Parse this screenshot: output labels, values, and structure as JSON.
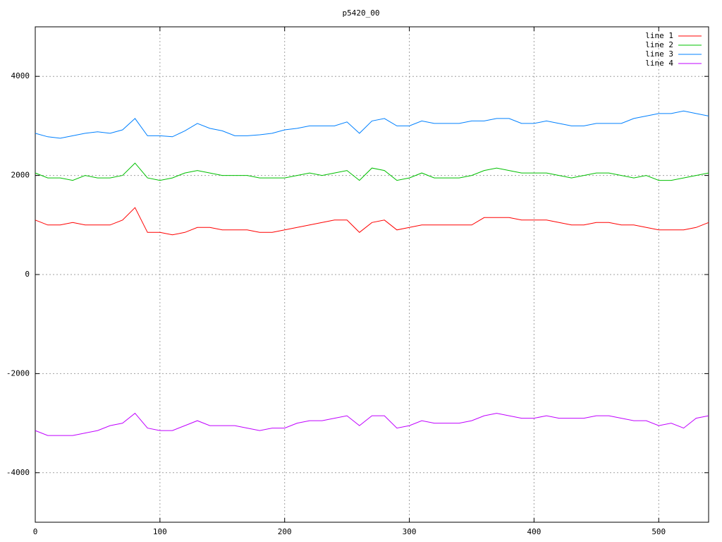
{
  "chart_data": {
    "type": "line",
    "title": "p5420_00",
    "x": [
      0,
      10,
      20,
      30,
      40,
      50,
      60,
      70,
      80,
      90,
      100,
      110,
      120,
      130,
      140,
      150,
      160,
      170,
      180,
      190,
      200,
      210,
      220,
      230,
      240,
      250,
      260,
      270,
      280,
      290,
      300,
      310,
      320,
      330,
      340,
      350,
      360,
      370,
      380,
      390,
      400,
      410,
      420,
      430,
      440,
      450,
      460,
      470,
      480,
      490,
      500,
      510,
      520,
      530,
      540
    ],
    "series": [
      {
        "name": "line 1",
        "color": "#ff0000",
        "values": [
          1100,
          1000,
          1000,
          1050,
          1000,
          1000,
          1000,
          1100,
          1350,
          850,
          850,
          800,
          850,
          950,
          950,
          900,
          900,
          900,
          850,
          850,
          900,
          950,
          1000,
          1050,
          1100,
          1100,
          850,
          1050,
          1100,
          900,
          950,
          1000,
          1000,
          1000,
          1000,
          1000,
          1150,
          1150,
          1150,
          1100,
          1100,
          1100,
          1050,
          1000,
          1000,
          1050,
          1050,
          1000,
          1000,
          950,
          900,
          900,
          900,
          950,
          1050
        ]
      },
      {
        "name": "line 2",
        "color": "#00c000",
        "values": [
          2050,
          1950,
          1950,
          1900,
          2000,
          1950,
          1950,
          2000,
          2250,
          1950,
          1900,
          1950,
          2050,
          2100,
          2050,
          2000,
          2000,
          2000,
          1950,
          1950,
          1950,
          2000,
          2050,
          2000,
          2050,
          2100,
          1900,
          2150,
          2100,
          1900,
          1950,
          2050,
          1950,
          1950,
          1950,
          2000,
          2100,
          2150,
          2100,
          2050,
          2050,
          2050,
          2000,
          1950,
          2000,
          2050,
          2050,
          2000,
          1950,
          2000,
          1900,
          1900,
          1950,
          2000,
          2050
        ]
      },
      {
        "name": "line 3",
        "color": "#0080ff",
        "values": [
          2850,
          2780,
          2750,
          2800,
          2850,
          2880,
          2850,
          2920,
          3150,
          2800,
          2800,
          2780,
          2900,
          3050,
          2950,
          2900,
          2800,
          2800,
          2820,
          2850,
          2920,
          2950,
          3000,
          3000,
          3000,
          3080,
          2850,
          3100,
          3150,
          3000,
          3000,
          3100,
          3050,
          3050,
          3050,
          3100,
          3100,
          3150,
          3150,
          3050,
          3050,
          3100,
          3050,
          3000,
          3000,
          3050,
          3050,
          3050,
          3150,
          3200,
          3250,
          3250,
          3300,
          3250,
          3200
        ]
      },
      {
        "name": "line 4",
        "color": "#c000ff",
        "values": [
          -3150,
          -3250,
          -3250,
          -3250,
          -3200,
          -3150,
          -3050,
          -3000,
          -2800,
          -3100,
          -3150,
          -3150,
          -3050,
          -2950,
          -3050,
          -3050,
          -3050,
          -3100,
          -3150,
          -3100,
          -3100,
          -3000,
          -2950,
          -2950,
          -2900,
          -2850,
          -3050,
          -2850,
          -2850,
          -3100,
          -3050,
          -2950,
          -3000,
          -3000,
          -3000,
          -2950,
          -2850,
          -2800,
          -2850,
          -2900,
          -2900,
          -2850,
          -2900,
          -2900,
          -2900,
          -2850,
          -2850,
          -2900,
          -2950,
          -2950,
          -3050,
          -3000,
          -3100,
          -2900,
          -2850
        ]
      }
    ],
    "xlim": [
      0,
      540
    ],
    "xticks": [
      0,
      100,
      200,
      300,
      400,
      500
    ],
    "ylim": [
      -5000,
      5000
    ],
    "yticks": [
      -4000,
      -2000,
      0,
      2000,
      4000
    ],
    "grid": true,
    "legend": "top-right"
  }
}
